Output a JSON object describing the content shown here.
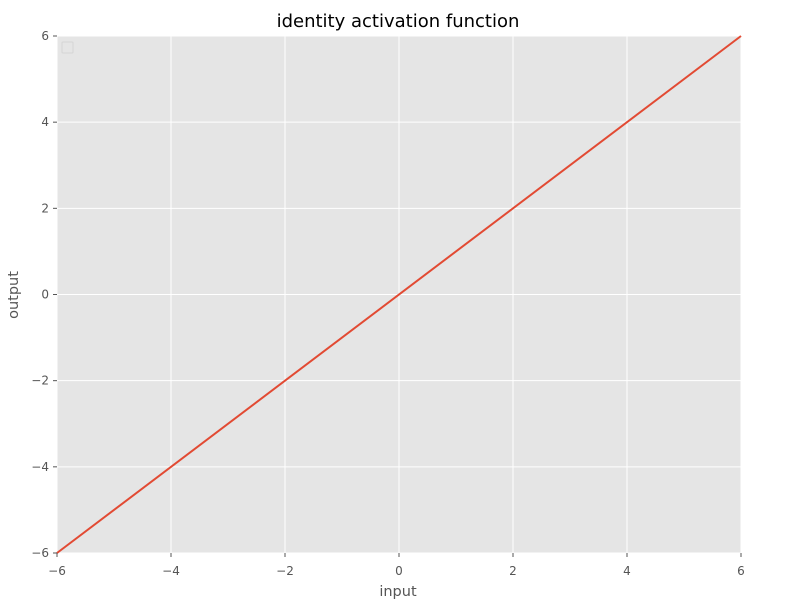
{
  "chart_data": {
    "type": "line",
    "title": "identity activation function",
    "xlabel": "input",
    "ylabel": "output",
    "xlim": [
      -6,
      6
    ],
    "ylim": [
      -6,
      6
    ],
    "xticks": [
      -6,
      -4,
      -2,
      0,
      2,
      4,
      6
    ],
    "yticks": [
      -6,
      -4,
      -2,
      0,
      2,
      4,
      6
    ],
    "xtick_labels": [
      "−6",
      "−4",
      "−2",
      "0",
      "2",
      "4",
      "6"
    ],
    "ytick_labels": [
      "−6",
      "−4",
      "−2",
      "0",
      "2",
      "4",
      "6"
    ],
    "grid": true,
    "legend": "top-left, empty",
    "series": [
      {
        "x": [
          -6,
          6
        ],
        "y": [
          -6,
          6
        ],
        "color": "#E24A33"
      }
    ],
    "colors": {
      "background": "#E5E5E5",
      "grid": "#FFFFFF",
      "line": "#E24A33"
    }
  }
}
